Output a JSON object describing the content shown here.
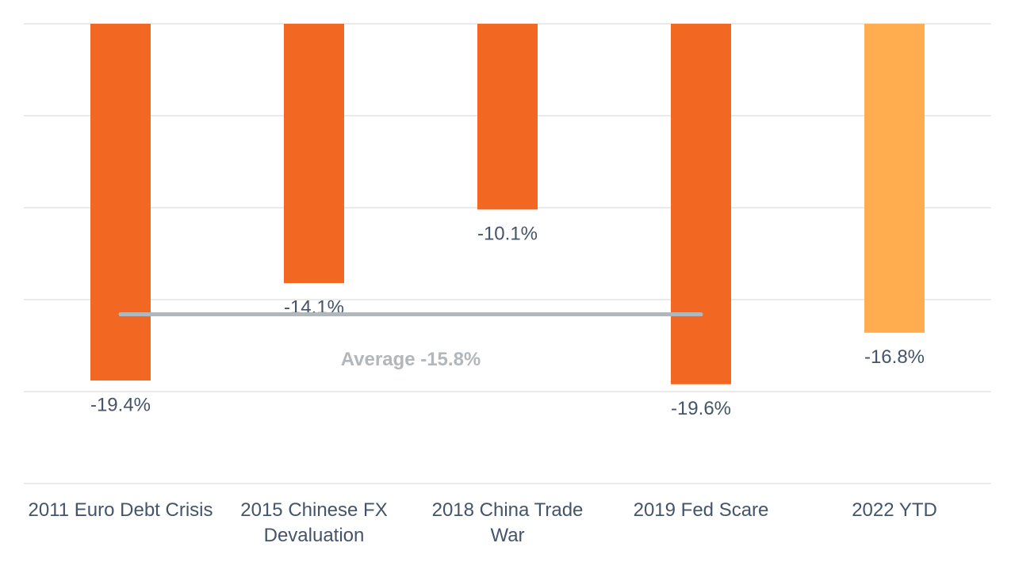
{
  "chart_data": {
    "type": "bar",
    "categories": [
      "2011 Euro Debt Crisis",
      "2015 Chinese FX Devaluation",
      "2018 China Trade War",
      "2019 Fed Scare",
      "2022 YTD"
    ],
    "values": [
      -19.4,
      -14.1,
      -10.1,
      -19.6,
      -16.8
    ],
    "value_labels": [
      "-19.4%",
      "-14.1%",
      "-10.1%",
      "-19.6%",
      "-16.8%"
    ],
    "colors": [
      "#f26722",
      "#f26722",
      "#f26722",
      "#f26722",
      "#ffad4f"
    ],
    "ylim": [
      -25,
      0
    ],
    "yticks": [
      -25,
      -20,
      -15,
      -10,
      -5,
      0
    ],
    "grid": true,
    "average": {
      "value": -15.8,
      "label": "Average -15.8%",
      "color": "#b1b7bb"
    }
  }
}
